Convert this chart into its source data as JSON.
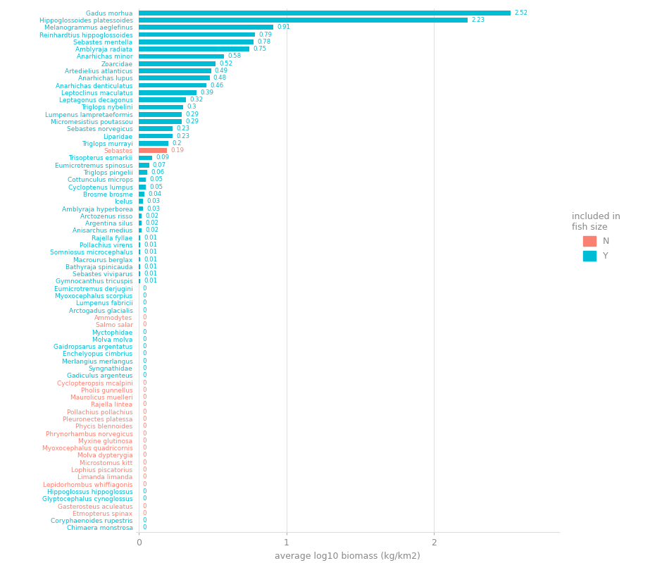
{
  "species": [
    "Gadus morhua",
    "Hippoglossoides platessoides",
    "Melanogrammus aeglefinus",
    "Reinhardtius hippoglossoides",
    "Sebastes mentella",
    "Amblyraja radiata",
    "Anarhichas minor",
    "Zoarcidae",
    "Artedielius atlanticus",
    "Anarhichas lupus",
    "Anarhichas denticulatus",
    "Leptoclinus maculatus",
    "Leptagonus decagonus",
    "Triglops nybelini",
    "Lumpenus lampretaeformis",
    "Micromesistius poutassou",
    "Sebastes norvegicus",
    "Liparidae",
    "Triglops murrayi",
    "Sebastes",
    "Trisopterus esmarkii",
    "Eumicrotremus spinosus",
    "Triglops pingelii",
    "Cottunculus microps",
    "Cycloptenus lumpus",
    "Brosme brosme",
    "Icelus",
    "Amblyraja hyperborea",
    "Arctozenus risso",
    "Argentina silus",
    "Anisarchus medius",
    "Rajella fyllae",
    "Pollachius virens",
    "Somniosus microcephalus",
    "Macrourus berglax",
    "Bathyraja spinicauda",
    "Sebastes viviparus",
    "Gymnocanthus tricuspis",
    "Eumicrotremus derjugini",
    "Myoxocephalus scorpius",
    "Lumpenus fabricii",
    "Arctogadus glacialis",
    "Ammodytes",
    "Salmo salar",
    "Myctophidae",
    "Molva molva",
    "Gaidropsarus argentatus",
    "Enchelyopus cimbrius",
    "Merlangius merlangus",
    "Syngnathidae",
    "Gadiculus argenteus",
    "Cyclopteropsis mcalpini",
    "Pholis gunnellus",
    "Maurolicus muelleri",
    "Rajella lintea",
    "Pollachius pollachius",
    "Pleuronectes platessa",
    "Phycis blennoides",
    "Phrynorhambus norvegicus",
    "Myxine glutinosa",
    "Myoxocephalus quadricornis",
    "Molva dypterygia",
    "Microstomus kitt",
    "Lophius piscatorius",
    "Limanda limanda",
    "Lepidorhombus whiffiagonis",
    "Hippoglossus hippoglossus",
    "Glyptocephalus cynoglossus",
    "Gasterosteus aculeatus",
    "Etmopterus spinax",
    "Coryphaenoides rupestris",
    "Chimaera monstrosa"
  ],
  "values": [
    2.52,
    2.23,
    0.91,
    0.79,
    0.78,
    0.75,
    0.58,
    0.52,
    0.49,
    0.48,
    0.46,
    0.39,
    0.32,
    0.3,
    0.29,
    0.29,
    0.23,
    0.23,
    0.2,
    0.19,
    0.09,
    0.07,
    0.06,
    0.05,
    0.05,
    0.04,
    0.03,
    0.03,
    0.02,
    0.02,
    0.02,
    0.01,
    0.01,
    0.01,
    0.01,
    0.01,
    0.01,
    0.01,
    0.0,
    0.0,
    0.0,
    0.0,
    0.0,
    0.0,
    0.0,
    0.0,
    0.0,
    0.0,
    0.0,
    0.0,
    0.0,
    0.0,
    0.0,
    0.0,
    0.0,
    0.0,
    0.0,
    0.0,
    0.0,
    0.0,
    0.0,
    0.0,
    0.0,
    0.0,
    0.0,
    0.0,
    0.0,
    0.0,
    0.0,
    0.0,
    0.0,
    0.0
  ],
  "value_labels": [
    "2.52",
    "2.23",
    "0.91",
    "0.79",
    "0.78",
    "0.75",
    "0.58",
    "0.52",
    "0.49",
    "0.48",
    "0.46",
    "0.39",
    "0.32",
    "0.3",
    "0.29",
    "0.29",
    "0.23",
    "0.23",
    "0.2",
    "0.19",
    "0.09",
    "0.07",
    "0.06",
    "0.05",
    "0.05",
    "0.04",
    "0.03",
    "0.03",
    "0.02",
    "0.02",
    "0.02",
    "0.01",
    "0.01",
    "0.01",
    "0.01",
    "0.01",
    "0.01",
    "0.01",
    "0",
    "0",
    "0",
    "0",
    "0",
    "0",
    "0",
    "0",
    "0",
    "0",
    "0",
    "0",
    "0",
    "0",
    "0",
    "0",
    "0",
    "0",
    "0",
    "0",
    "0",
    "0",
    "0",
    "0",
    "0",
    "0",
    "0",
    "0",
    "0",
    "0",
    "0",
    "0",
    "0",
    "0"
  ],
  "included": [
    "Y",
    "Y",
    "Y",
    "Y",
    "Y",
    "Y",
    "Y",
    "Y",
    "Y",
    "Y",
    "Y",
    "Y",
    "Y",
    "Y",
    "Y",
    "Y",
    "Y",
    "Y",
    "Y",
    "N",
    "Y",
    "Y",
    "Y",
    "Y",
    "Y",
    "Y",
    "Y",
    "Y",
    "Y",
    "Y",
    "Y",
    "Y",
    "Y",
    "Y",
    "Y",
    "Y",
    "Y",
    "Y",
    "Y",
    "Y",
    "Y",
    "Y",
    "N",
    "N",
    "Y",
    "Y",
    "Y",
    "Y",
    "Y",
    "Y",
    "Y",
    "N",
    "N",
    "N",
    "N",
    "N",
    "N",
    "N",
    "N",
    "N",
    "N",
    "N",
    "N",
    "N",
    "N",
    "N",
    "Y",
    "Y",
    "N",
    "N",
    "Y",
    "Y"
  ],
  "color_Y": "#00BCD4",
  "color_N": "#FA8072",
  "bg_color": "#FFFFFF",
  "grid_color": "#DEDEDE",
  "xlabel": "average log10 biomass (kg/km2)",
  "legend_title": "included in\nfish size",
  "axis_label_color": "#888888",
  "species_label_color": "#888888",
  "xlim_max": 2.85,
  "bar_height": 0.65
}
